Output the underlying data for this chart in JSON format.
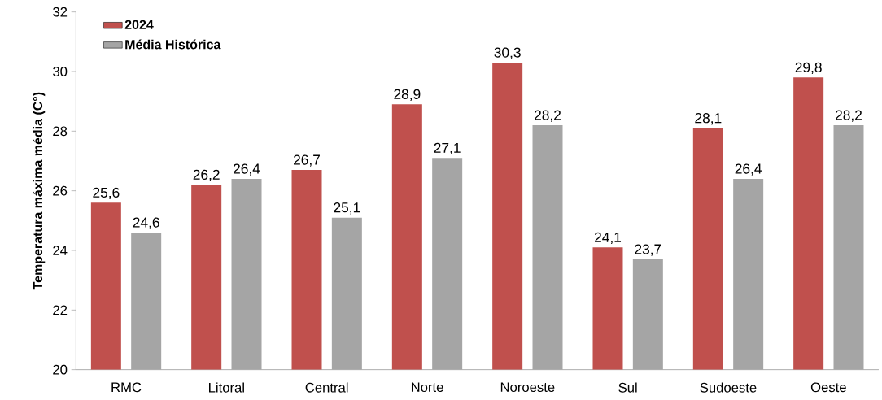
{
  "chart_data": {
    "type": "bar",
    "ylabel": "Temperatura máxima média (C°)",
    "categories": [
      "RMC",
      "Litoral",
      "Central",
      "Norte",
      "Noroeste",
      "Sul",
      "Sudoeste",
      "Oeste"
    ],
    "series": [
      {
        "name": "2024",
        "color": "#c0504d",
        "values": [
          25.6,
          26.2,
          26.7,
          28.9,
          30.3,
          24.1,
          28.1,
          29.8
        ],
        "value_labels": [
          "25,6",
          "26,2",
          "26,7",
          "28,9",
          "30,3",
          "24,1",
          "28,1",
          "29,8"
        ]
      },
      {
        "name": "Média Histórica",
        "color": "#a5a5a5",
        "values": [
          24.6,
          26.4,
          25.1,
          27.1,
          28.2,
          23.7,
          26.4,
          28.2
        ],
        "value_labels": [
          "24,6",
          "26,4",
          "25,1",
          "27,1",
          "28,2",
          "23,7",
          "26,4",
          "28,2"
        ]
      }
    ],
    "ylim": [
      20,
      32
    ],
    "yticks": [
      20,
      22,
      24,
      26,
      28,
      30,
      32
    ],
    "legend": "top left"
  }
}
